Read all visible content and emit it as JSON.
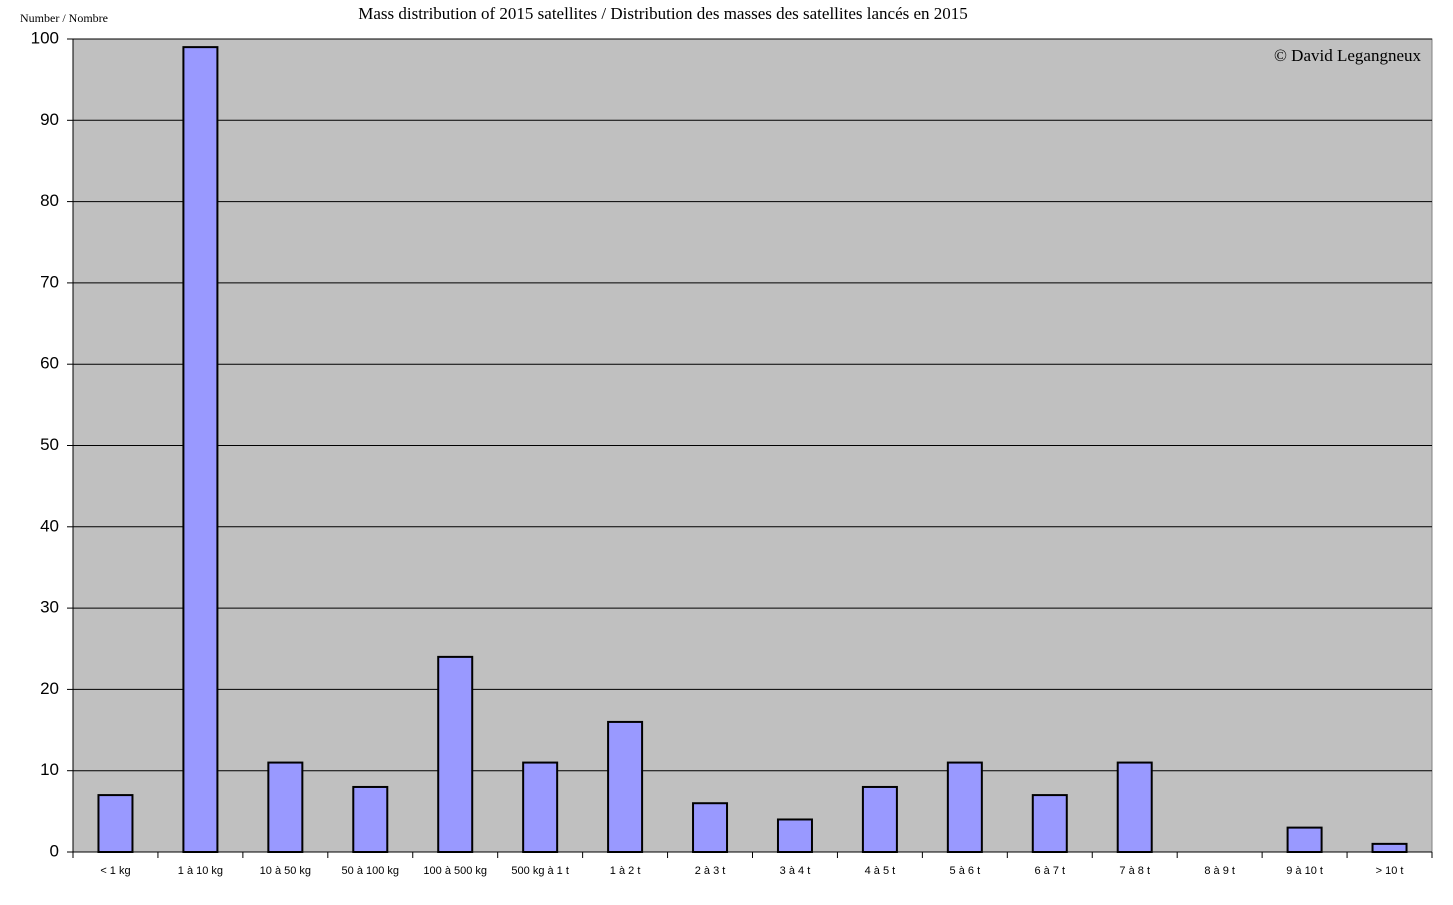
{
  "chart_data": {
    "type": "bar",
    "title": "Mass distribution of 2015 satellites / Distribution des masses des satellites lancés en 2015",
    "y_label": "Number / Nombre",
    "annotation": "© David Legangneux",
    "categories": [
      "< 1 kg",
      "1 à 10 kg",
      "10 à 50 kg",
      "50 à 100 kg",
      "100 à 500 kg",
      "500 kg à 1 t",
      "1 à 2 t",
      "2 à 3 t",
      "3 à 4 t",
      "4 à 5 t",
      "5 à 6 t",
      "6 à 7 t",
      "7 à 8 t",
      "8 à 9 t",
      "9 à 10 t",
      "> 10 t"
    ],
    "values": [
      7,
      99,
      11,
      8,
      24,
      11,
      16,
      6,
      4,
      8,
      11,
      7,
      11,
      0,
      3,
      1
    ],
    "color": "#9999ff",
    "ylim": [
      0,
      100
    ],
    "yticks": [
      0,
      10,
      20,
      30,
      40,
      50,
      60,
      70,
      80,
      90,
      100
    ],
    "grid": true
  }
}
